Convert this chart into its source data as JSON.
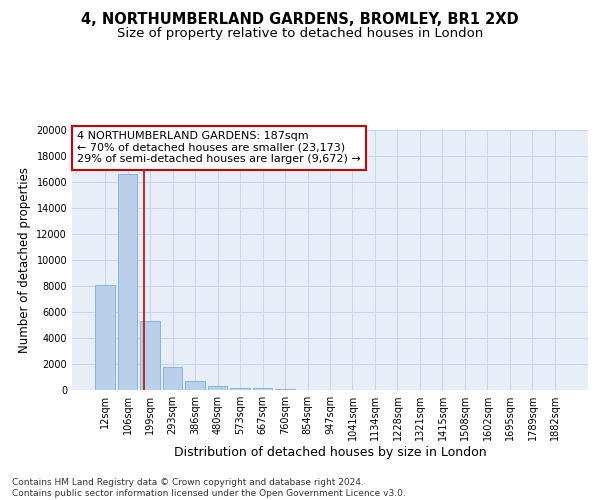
{
  "title": "4, NORTHUMBERLAND GARDENS, BROMLEY, BR1 2XD",
  "subtitle": "Size of property relative to detached houses in London",
  "xlabel": "Distribution of detached houses by size in London",
  "ylabel": "Number of detached properties",
  "categories": [
    "12sqm",
    "106sqm",
    "199sqm",
    "293sqm",
    "386sqm",
    "480sqm",
    "573sqm",
    "667sqm",
    "760sqm",
    "854sqm",
    "947sqm",
    "1041sqm",
    "1134sqm",
    "1228sqm",
    "1321sqm",
    "1415sqm",
    "1508sqm",
    "1602sqm",
    "1695sqm",
    "1789sqm",
    "1882sqm"
  ],
  "values": [
    8100,
    16600,
    5300,
    1800,
    700,
    320,
    190,
    140,
    110,
    0,
    0,
    0,
    0,
    0,
    0,
    0,
    0,
    0,
    0,
    0,
    0
  ],
  "bar_color": "#b8d0ea",
  "bar_edge_color": "#7aafd4",
  "vline_x": 1.72,
  "vline_color": "#cc0000",
  "annotation_text": "4 NORTHUMBERLAND GARDENS: 187sqm\n← 70% of detached houses are smaller (23,173)\n29% of semi-detached houses are larger (9,672) →",
  "annotation_box_color": "#ffffff",
  "annotation_box_edge": "#cc0000",
  "ylim": [
    0,
    20000
  ],
  "yticks": [
    0,
    2000,
    4000,
    6000,
    8000,
    10000,
    12000,
    14000,
    16000,
    18000,
    20000
  ],
  "grid_color": "#c8d4e8",
  "bg_color": "#e8eef8",
  "footer": "Contains HM Land Registry data © Crown copyright and database right 2024.\nContains public sector information licensed under the Open Government Licence v3.0.",
  "title_fontsize": 10.5,
  "subtitle_fontsize": 9.5,
  "xlabel_fontsize": 9,
  "ylabel_fontsize": 8.5,
  "tick_fontsize": 7,
  "footer_fontsize": 6.5,
  "ann_fontsize": 8
}
